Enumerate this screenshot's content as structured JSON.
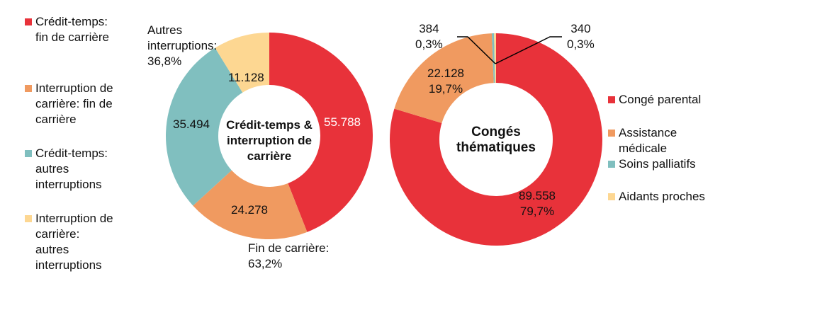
{
  "chart_data": [
    {
      "type": "pie",
      "donut": true,
      "center_label": "Crédit-temps & interruption de carrière",
      "categories": [
        "Crédit-temps: fin de carrière",
        "Interruption de carrière: fin de carrière",
        "Crédit-temps: autres interruptions",
        "Interruption de carrière: autres interruptions"
      ],
      "values": [
        55788,
        24278,
        35494,
        11128
      ],
      "value_labels": [
        "55.788",
        "24.278",
        "35.494",
        "11.128"
      ],
      "colors": [
        "#E8323A",
        "#F09A60",
        "#80BFBF",
        "#FDD792"
      ],
      "group_annotations": [
        {
          "text_line1": "Fin de carrière:",
          "text_line2": "63,2%"
        },
        {
          "text_line1": "Autres",
          "text_line2": "interruptions:",
          "text_line3": "36,8%"
        }
      ],
      "legend": {
        "placement": "left",
        "entries": [
          {
            "lines": [
              "Crédit-temps:",
              "fin de carrière"
            ]
          },
          {
            "lines": [
              "Interruption de",
              "carrière: fin de",
              "carrière"
            ]
          },
          {
            "lines": [
              "Crédit-temps:",
              "autres",
              "interruptions"
            ]
          },
          {
            "lines": [
              "Interruption de",
              "carrière:",
              "autres",
              "interruptions"
            ]
          }
        ]
      }
    },
    {
      "type": "pie",
      "donut": true,
      "center_label_line1": "Congés",
      "center_label_line2": "thématiques",
      "categories": [
        "Congé parental",
        "Assistance médicale",
        "Soins palliatifs",
        "Aidants proches"
      ],
      "values": [
        89558,
        22128,
        384,
        340
      ],
      "value_labels": [
        "89.558",
        "22.128",
        "384",
        "340"
      ],
      "percent_labels": [
        "79,7%",
        "19,7%",
        "0,3%",
        "0,3%"
      ],
      "colors": [
        "#E8323A",
        "#F09A60",
        "#80BFBF",
        "#FDD792"
      ],
      "legend": {
        "placement": "right",
        "entries": [
          {
            "lines": [
              "Congé parental"
            ]
          },
          {
            "lines": [
              "Assistance",
              "médicale"
            ]
          },
          {
            "lines": [
              "Soins palliatifs"
            ]
          },
          {
            "lines": [
              "Aidants proches"
            ]
          }
        ]
      }
    }
  ]
}
